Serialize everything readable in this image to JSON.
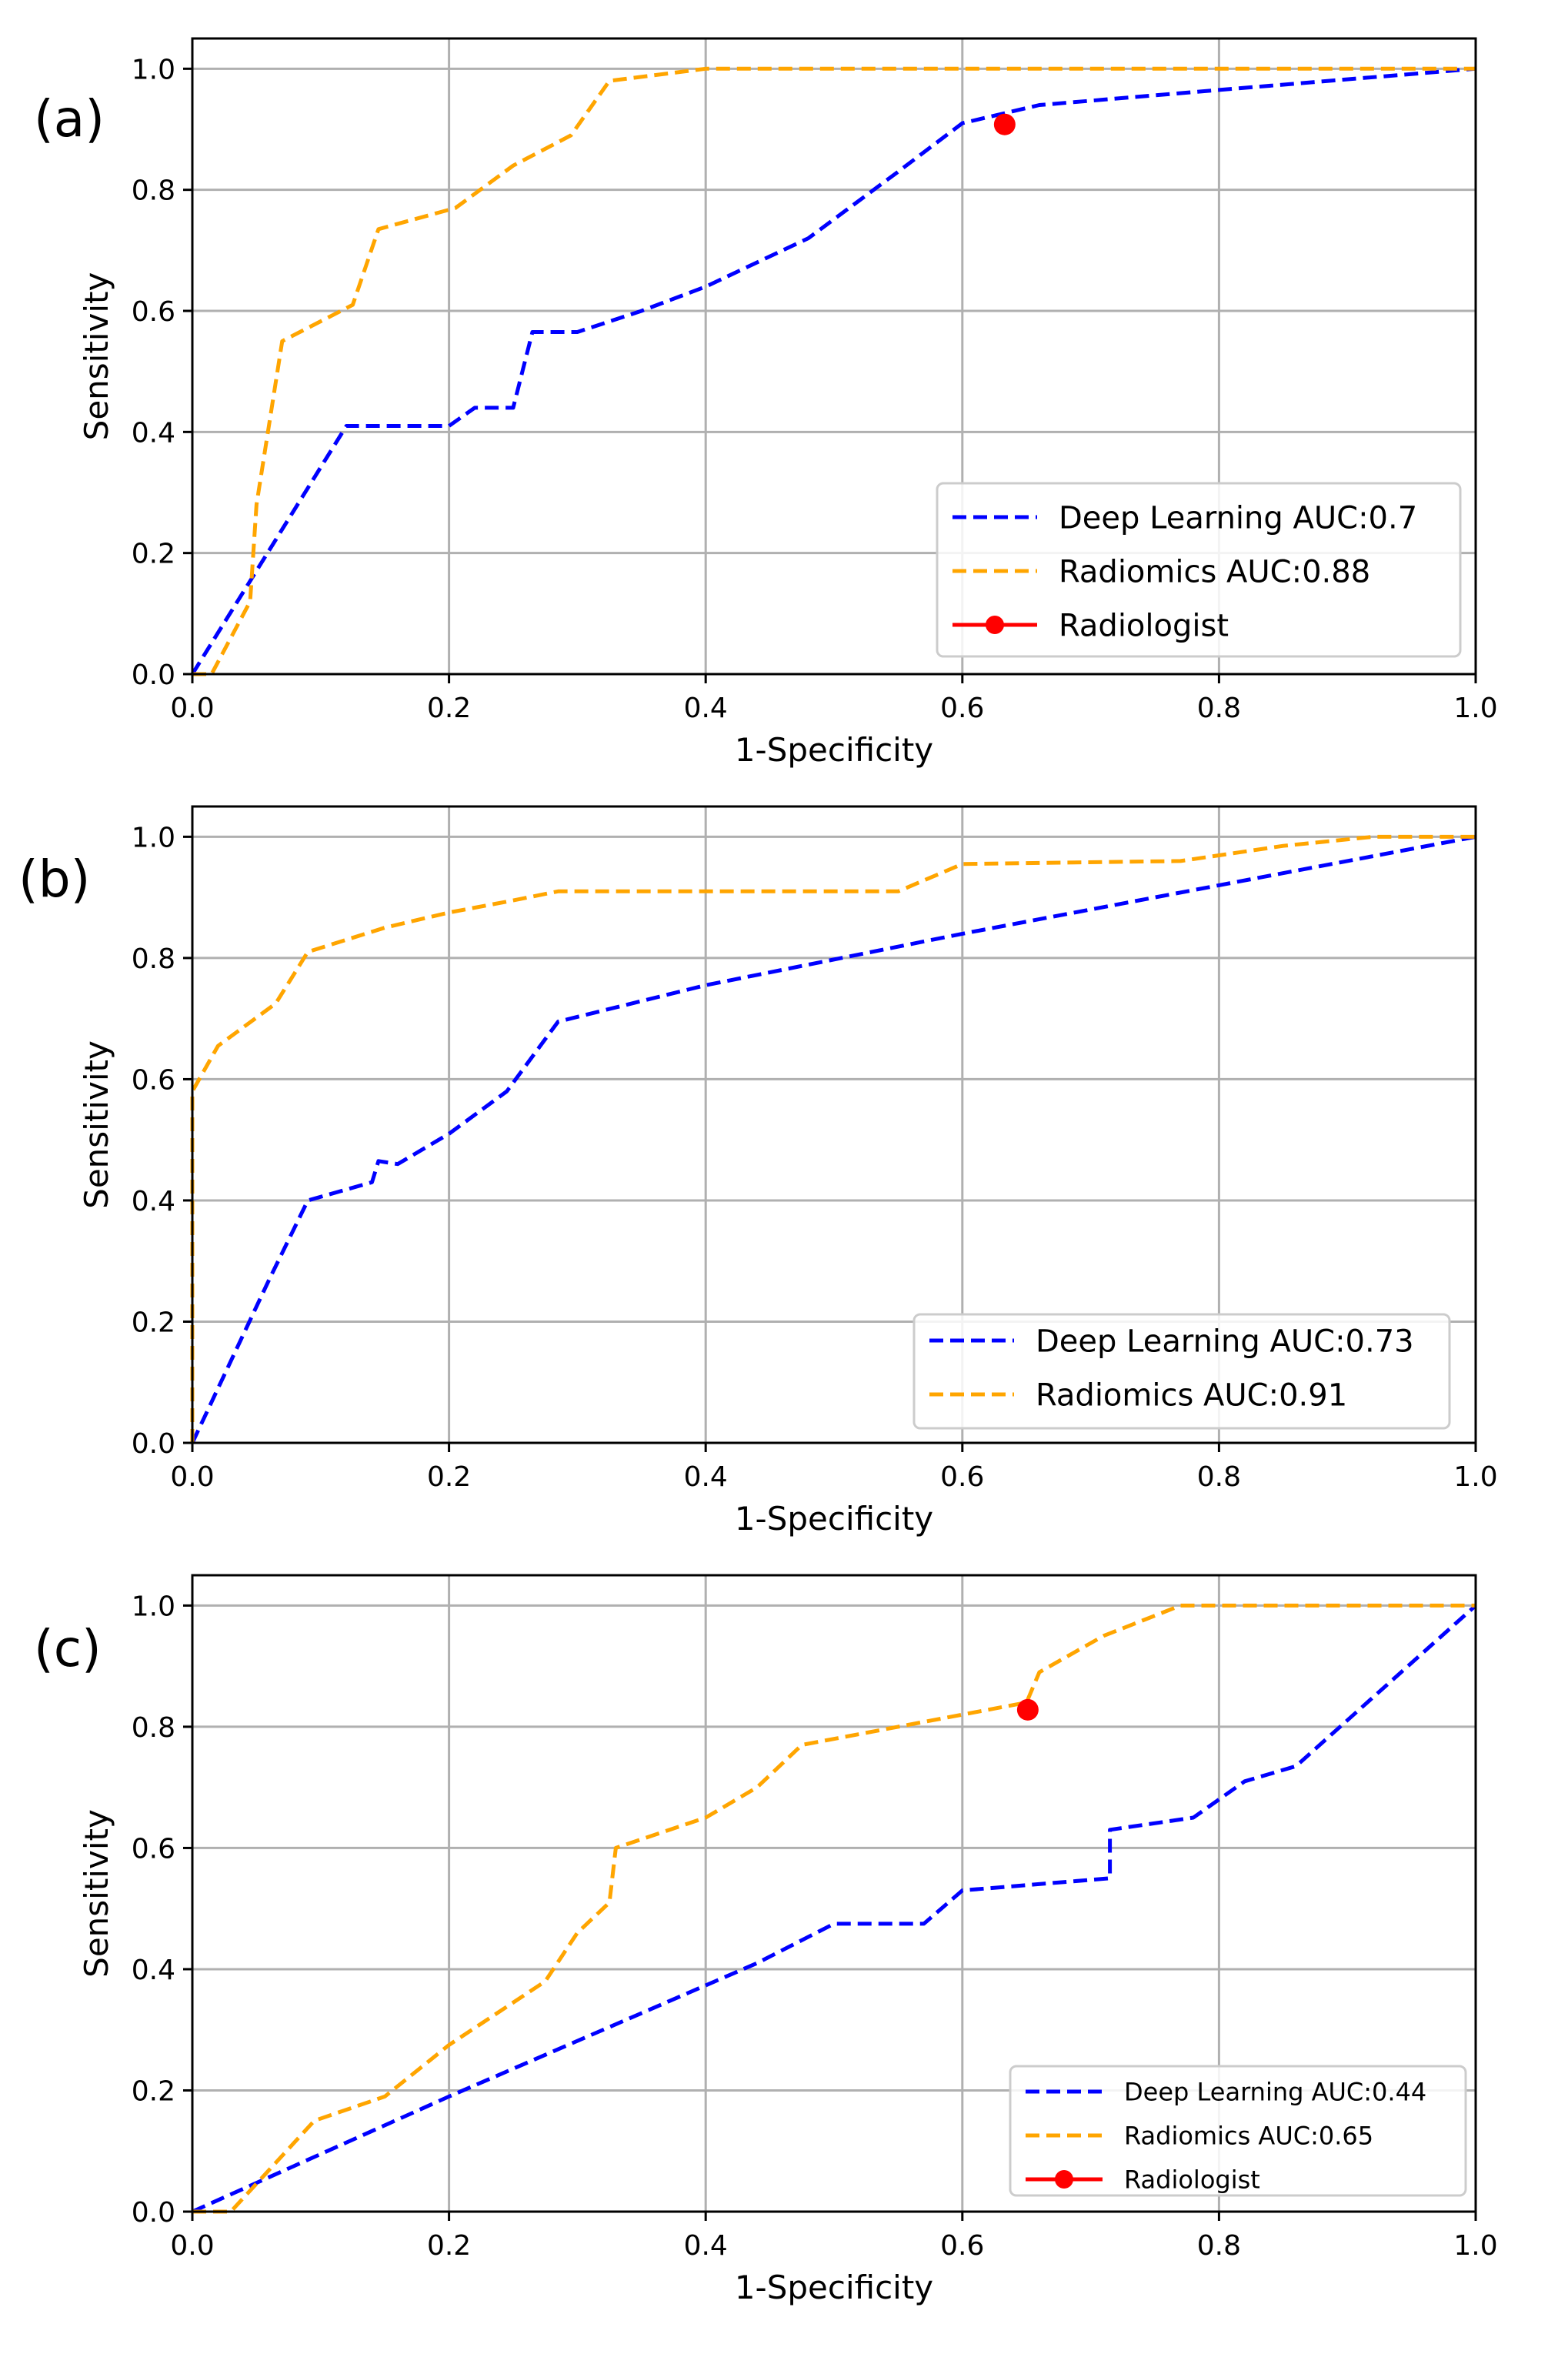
{
  "figure": {
    "panel_count": 3
  },
  "chart_data": [
    {
      "type": "line",
      "panel_label": "(a)",
      "title": "",
      "xlabel": "1-Specificity",
      "ylabel": "Sensitivity",
      "xlim": [
        0,
        1
      ],
      "ylim": [
        0,
        1.05
      ],
      "xticks": [
        0,
        0.2,
        0.4,
        0.6,
        0.8,
        1
      ],
      "yticks": [
        0,
        0.2,
        0.4,
        0.6,
        0.8,
        1
      ],
      "x_tick_labels": [
        "0.0",
        "0.2",
        "0.4",
        "0.6",
        "0.8",
        "1.0"
      ],
      "y_tick_labels": [
        "0.0",
        "0.2",
        "0.4",
        "0.6",
        "0.8",
        "1.0"
      ],
      "grid": true,
      "legend": {
        "position": "lower-right"
      },
      "series": [
        {
          "name": "Deep Learning AUC:0.7",
          "color": "#0000ff",
          "style": "dashed",
          "x": [
            0,
            0.12,
            0.2,
            0.22,
            0.25,
            0.265,
            0.3,
            0.35,
            0.4,
            0.48,
            0.55,
            0.6,
            0.66,
            0.8,
            1.0
          ],
          "y": [
            0,
            0.41,
            0.41,
            0.44,
            0.44,
            0.565,
            0.565,
            0.6,
            0.64,
            0.72,
            0.83,
            0.91,
            0.94,
            0.965,
            1.0
          ]
        },
        {
          "name": "Radiomics AUC:0.88",
          "color": "#ffa500",
          "style": "dashed",
          "x": [
            0,
            0.015,
            0.045,
            0.05,
            0.07,
            0.125,
            0.145,
            0.205,
            0.25,
            0.295,
            0.325,
            0.4,
            1.0
          ],
          "y": [
            0,
            0.0,
            0.12,
            0.28,
            0.55,
            0.61,
            0.735,
            0.77,
            0.84,
            0.89,
            0.98,
            1.0,
            1.0
          ]
        },
        {
          "name": "Radiologist",
          "color": "#ff0000",
          "style": "marker",
          "x": [
            0.633
          ],
          "y": [
            0.908
          ]
        }
      ]
    },
    {
      "type": "line",
      "panel_label": "(b)",
      "title": "",
      "xlabel": "1-Specificity",
      "ylabel": "Sensitivity",
      "xlim": [
        0,
        1
      ],
      "ylim": [
        0,
        1.05
      ],
      "xticks": [
        0,
        0.2,
        0.4,
        0.6,
        0.8,
        1
      ],
      "yticks": [
        0,
        0.2,
        0.4,
        0.6,
        0.8,
        1
      ],
      "x_tick_labels": [
        "0.0",
        "0.2",
        "0.4",
        "0.6",
        "0.8",
        "1.0"
      ],
      "y_tick_labels": [
        "0.0",
        "0.2",
        "0.4",
        "0.6",
        "0.8",
        "1.0"
      ],
      "grid": true,
      "legend": {
        "position": "lower-right"
      },
      "series": [
        {
          "name": "Deep Learning AUC:0.73",
          "color": "#0000ff",
          "style": "dashed",
          "x": [
            0,
            0.06,
            0.09,
            0.14,
            0.145,
            0.16,
            0.2,
            0.245,
            0.285,
            0.4,
            0.6,
            0.8,
            1.0
          ],
          "y": [
            0,
            0.27,
            0.4,
            0.43,
            0.465,
            0.46,
            0.51,
            0.58,
            0.695,
            0.755,
            0.84,
            0.92,
            1.0
          ]
        },
        {
          "name": "Radiomics AUC:0.91",
          "color": "#ffa500",
          "style": "dashed",
          "x": [
            0,
            0.0,
            0.02,
            0.065,
            0.09,
            0.15,
            0.2,
            0.25,
            0.285,
            0.55,
            0.6,
            0.77,
            0.85,
            0.92,
            1.0
          ],
          "y": [
            0,
            0.58,
            0.655,
            0.725,
            0.81,
            0.85,
            0.875,
            0.895,
            0.91,
            0.91,
            0.955,
            0.96,
            0.985,
            1.0,
            1.0
          ]
        }
      ]
    },
    {
      "type": "line",
      "panel_label": "(c)",
      "title": "",
      "xlabel": "1-Specificity",
      "ylabel": "Sensitivity",
      "xlim": [
        0,
        1
      ],
      "ylim": [
        0,
        1.05
      ],
      "xticks": [
        0,
        0.2,
        0.4,
        0.6,
        0.8,
        1
      ],
      "yticks": [
        0,
        0.2,
        0.4,
        0.6,
        0.8,
        1
      ],
      "x_tick_labels": [
        "0.0",
        "0.2",
        "0.4",
        "0.6",
        "0.8",
        "1.0"
      ],
      "y_tick_labels": [
        "0.0",
        "0.2",
        "0.4",
        "0.6",
        "0.8",
        "1.0"
      ],
      "grid": true,
      "legend": {
        "position": "lower-right"
      },
      "series": [
        {
          "name": "Deep Learning AUC:0.44",
          "color": "#0000ff",
          "style": "dashed",
          "x": [
            0,
            0.2,
            0.44,
            0.5,
            0.57,
            0.6,
            0.715,
            0.715,
            0.78,
            0.82,
            0.86,
            1.0
          ],
          "y": [
            0,
            0.19,
            0.41,
            0.475,
            0.475,
            0.53,
            0.55,
            0.63,
            0.65,
            0.71,
            0.735,
            1.0
          ]
        },
        {
          "name": "Radiomics AUC:0.65",
          "color": "#ffa500",
          "style": "dashed",
          "x": [
            0,
            0.03,
            0.095,
            0.15,
            0.2,
            0.275,
            0.3,
            0.325,
            0.33,
            0.4,
            0.44,
            0.475,
            0.55,
            0.65,
            0.66,
            0.71,
            0.77,
            1.0
          ],
          "y": [
            0,
            0.0,
            0.15,
            0.19,
            0.275,
            0.38,
            0.46,
            0.51,
            0.6,
            0.65,
            0.7,
            0.77,
            0.8,
            0.84,
            0.89,
            0.95,
            1.0,
            1.0
          ]
        },
        {
          "name": "Radiologist",
          "color": "#ff0000",
          "style": "marker",
          "x": [
            0.651
          ],
          "y": [
            0.828
          ]
        }
      ]
    }
  ]
}
